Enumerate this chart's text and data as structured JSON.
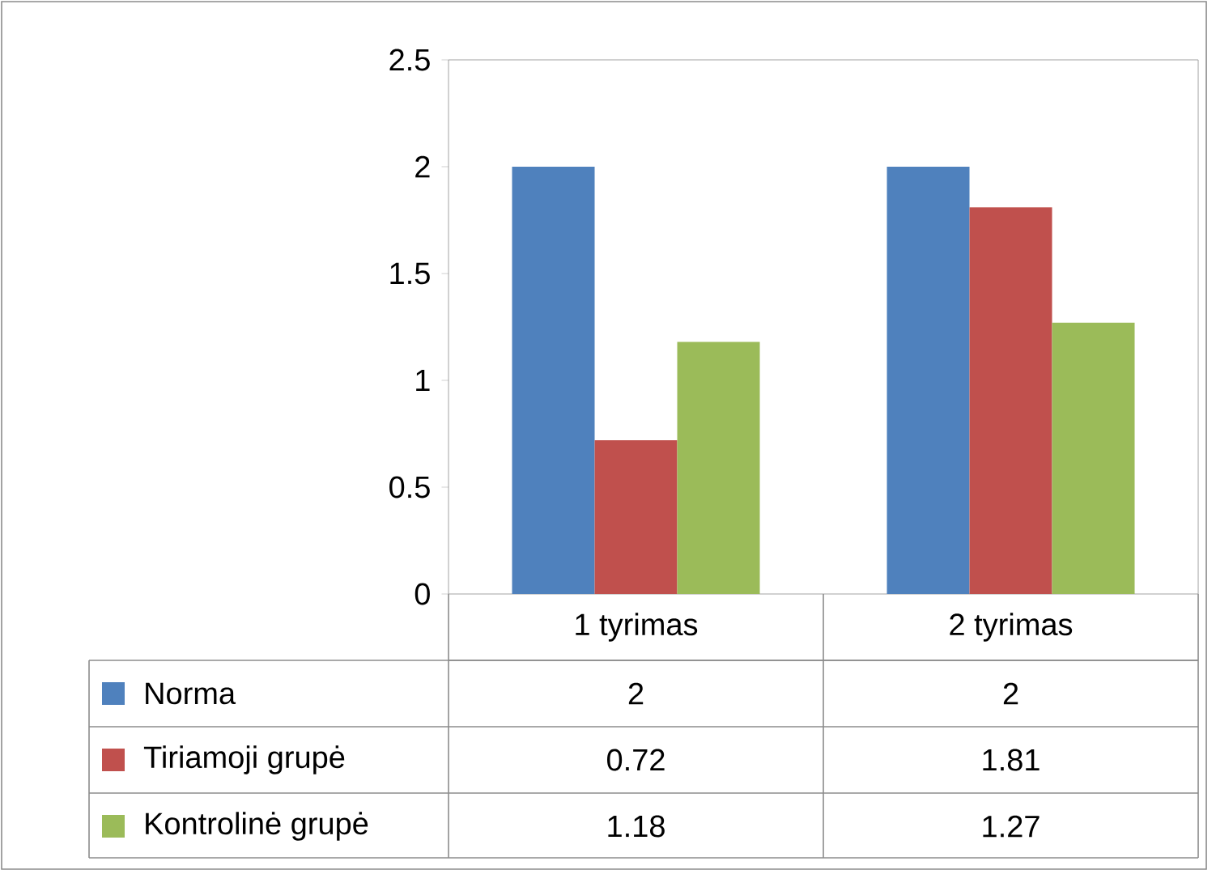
{
  "chart_data": {
    "type": "bar",
    "categories": [
      "1 tyrimas",
      "2 tyrimas"
    ],
    "series": [
      {
        "name": "Norma",
        "color": "#4f81bd",
        "values": [
          2,
          2
        ]
      },
      {
        "name": "Tiriamoji grupė",
        "color": "#c0504d",
        "values": [
          0.72,
          1.81
        ]
      },
      {
        "name": "Kontrolinė grupė",
        "color": "#9bbb59",
        "values": [
          1.18,
          1.27
        ]
      }
    ],
    "ylim": [
      0,
      2.5
    ],
    "yticks": [
      0,
      0.5,
      1,
      1.5,
      2,
      2.5
    ],
    "data_labels": true,
    "legend": "bottom"
  }
}
